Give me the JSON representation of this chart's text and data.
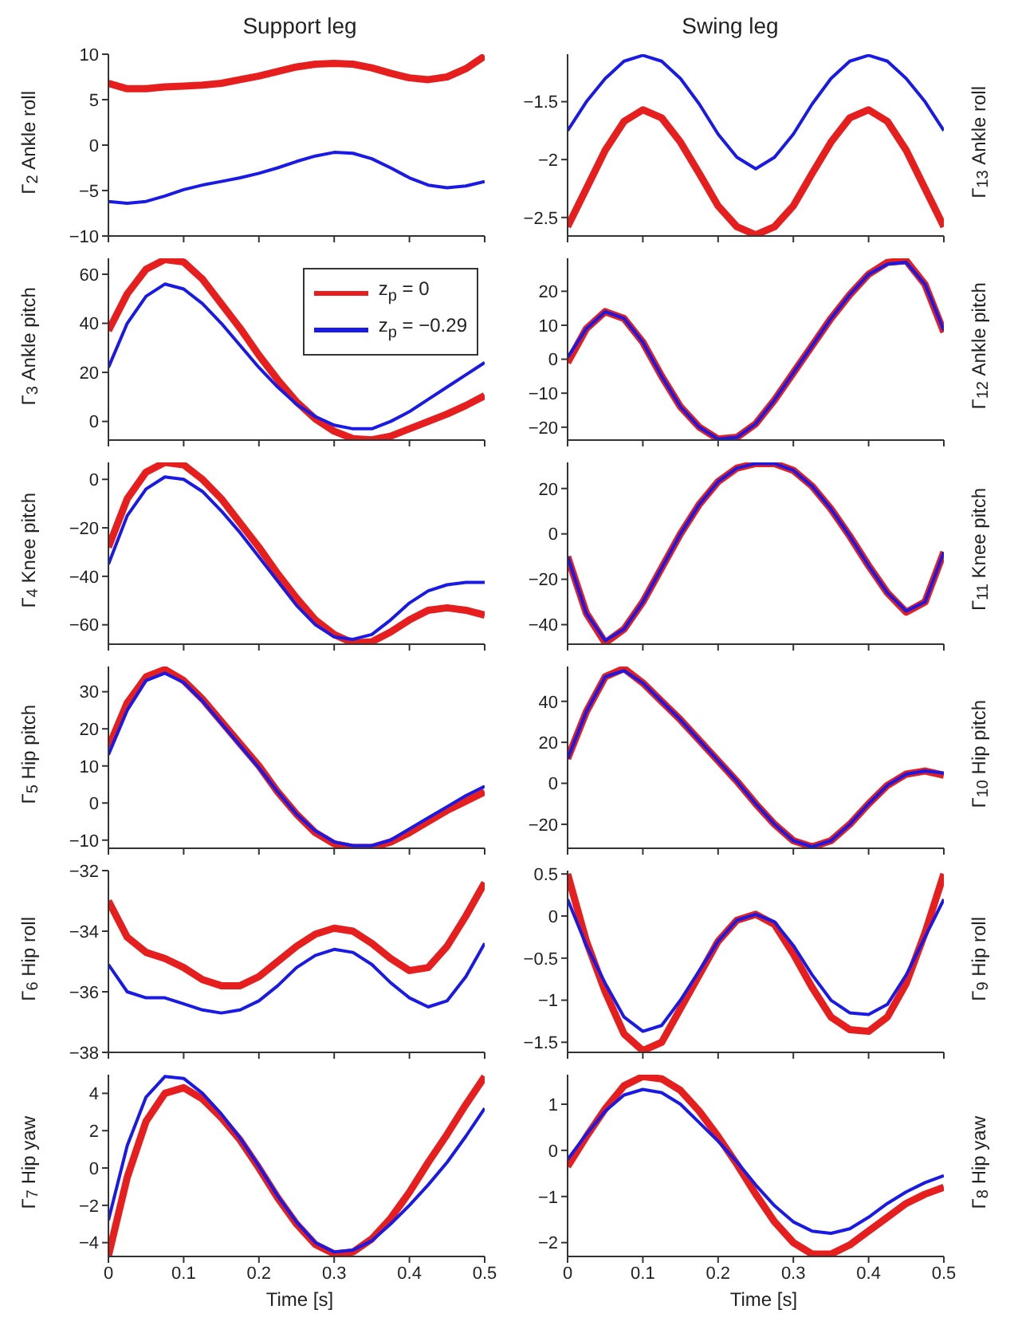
{
  "chart_data": [
    {
      "type": "line",
      "title": "Support leg",
      "ylabel": "Γ$_{2}$ Ankle roll",
      "x": [
        0,
        0.025,
        0.05,
        0.075,
        0.1,
        0.125,
        0.15,
        0.175,
        0.2,
        0.225,
        0.25,
        0.275,
        0.3,
        0.325,
        0.35,
        0.375,
        0.4,
        0.425,
        0.45,
        0.475,
        0.5
      ],
      "xlim": [
        0,
        0.5
      ],
      "xticks": [
        0,
        0.1,
        0.2,
        0.3,
        0.4,
        0.5
      ],
      "ylim": [
        -10,
        10
      ],
      "yticks": [
        -10,
        -5,
        0,
        5,
        10
      ],
      "tick_labels": "y",
      "series": [
        {
          "color": "#e61e1e",
          "values": [
            6.8,
            6.2,
            6.2,
            6.4,
            6.5,
            6.6,
            6.8,
            7.2,
            7.6,
            8.1,
            8.6,
            8.9,
            9.0,
            8.9,
            8.5,
            7.9,
            7.4,
            7.2,
            7.5,
            8.4,
            9.8
          ]
        },
        {
          "color": "#1a1ae6",
          "values": [
            -6.2,
            -6.4,
            -6.2,
            -5.6,
            -4.9,
            -4.4,
            -4.0,
            -3.6,
            -3.1,
            -2.5,
            -1.8,
            -1.2,
            -0.8,
            -0.9,
            -1.5,
            -2.5,
            -3.6,
            -4.4,
            -4.7,
            -4.5,
            -4.0
          ]
        }
      ]
    },
    {
      "type": "line",
      "title": "Swing leg",
      "ylabel": "Γ$_{13}$ Ankle roll",
      "x": [
        0,
        0.025,
        0.05,
        0.075,
        0.1,
        0.125,
        0.15,
        0.175,
        0.2,
        0.225,
        0.25,
        0.275,
        0.3,
        0.325,
        0.35,
        0.375,
        0.4,
        0.425,
        0.45,
        0.475,
        0.5
      ],
      "xlim": [
        0,
        0.5
      ],
      "xticks": [
        0,
        0.1,
        0.2,
        0.3,
        0.4,
        0.5
      ],
      "ylim": [
        -2.66,
        -1.09
      ],
      "yticks": [
        -2.5,
        -2,
        -1.5
      ],
      "tick_labels": "y",
      "series": [
        {
          "color": "#e61e1e",
          "values": [
            -2.58,
            -2.25,
            -1.92,
            -1.67,
            -1.57,
            -1.64,
            -1.85,
            -2.12,
            -2.4,
            -2.58,
            -2.65,
            -2.58,
            -2.4,
            -2.12,
            -1.85,
            -1.64,
            -1.57,
            -1.67,
            -1.92,
            -2.25,
            -2.58
          ]
        },
        {
          "color": "#1a1ae6",
          "values": [
            -1.75,
            -1.5,
            -1.3,
            -1.15,
            -1.1,
            -1.15,
            -1.3,
            -1.52,
            -1.78,
            -1.98,
            -2.08,
            -1.98,
            -1.78,
            -1.52,
            -1.3,
            -1.15,
            -1.1,
            -1.15,
            -1.3,
            -1.5,
            -1.75
          ]
        }
      ]
    },
    {
      "type": "line",
      "ylabel": "Γ$_{3}$ Ankle pitch",
      "x": [
        0,
        0.025,
        0.05,
        0.075,
        0.1,
        0.125,
        0.15,
        0.175,
        0.2,
        0.225,
        0.25,
        0.275,
        0.3,
        0.325,
        0.35,
        0.375,
        0.4,
        0.425,
        0.45,
        0.475,
        0.5
      ],
      "xlim": [
        0,
        0.5
      ],
      "xticks": [
        0,
        0.1,
        0.2,
        0.3,
        0.4,
        0.5
      ],
      "ylim": [
        -7.6,
        66.5
      ],
      "yticks": [
        0,
        20,
        40,
        60
      ],
      "tick_labels": "y",
      "legend": "top right",
      "series": [
        {
          "name": "z$_{p}$ = 0",
          "color": "#e61e1e",
          "values": [
            37,
            52,
            62,
            66,
            65,
            58,
            48,
            38,
            27,
            17,
            8,
            1,
            -4,
            -7,
            -7.5,
            -6,
            -3,
            0,
            3,
            6.5,
            10.5
          ]
        },
        {
          "name": "z$_{p}$ = −0.29",
          "color": "#1a1ae6",
          "values": [
            22,
            40,
            51,
            56,
            54,
            48,
            40,
            31,
            22,
            14,
            7,
            2,
            -1.5,
            -3,
            -3,
            0,
            4,
            9,
            14,
            19,
            24
          ]
        }
      ]
    },
    {
      "type": "line",
      "ylabel": "Γ$_{12}$ Ankle pitch",
      "x": [
        0,
        0.025,
        0.05,
        0.075,
        0.1,
        0.125,
        0.15,
        0.175,
        0.2,
        0.225,
        0.25,
        0.275,
        0.3,
        0.325,
        0.35,
        0.375,
        0.4,
        0.425,
        0.45,
        0.475,
        0.5
      ],
      "xlim": [
        0,
        0.5
      ],
      "xticks": [
        0,
        0.1,
        0.2,
        0.3,
        0.4,
        0.5
      ],
      "ylim": [
        -23.8,
        29.7
      ],
      "yticks": [
        -20,
        -10,
        0,
        10,
        20
      ],
      "tick_labels": "y",
      "series": [
        {
          "color": "#e61e1e",
          "values": [
            -1,
            9,
            14,
            12,
            5,
            -5,
            -14,
            -20,
            -23.5,
            -23,
            -19,
            -12,
            -4,
            4,
            12,
            19,
            25,
            28.5,
            29,
            22,
            8
          ]
        },
        {
          "color": "#1a1ae6",
          "values": [
            0.5,
            9,
            14,
            12,
            5,
            -5,
            -14,
            -20,
            -23.5,
            -23,
            -19,
            -12,
            -4,
            4,
            12,
            19,
            25,
            28,
            28.5,
            22,
            8.5
          ]
        }
      ]
    },
    {
      "type": "line",
      "ylabel": "Γ$_{4}$ Knee pitch",
      "x": [
        0,
        0.025,
        0.05,
        0.075,
        0.1,
        0.125,
        0.15,
        0.175,
        0.2,
        0.225,
        0.25,
        0.275,
        0.3,
        0.325,
        0.35,
        0.375,
        0.4,
        0.425,
        0.45,
        0.475,
        0.5
      ],
      "xlim": [
        0,
        0.5
      ],
      "xticks": [
        0,
        0.1,
        0.2,
        0.3,
        0.4,
        0.5
      ],
      "ylim": [
        -68,
        7
      ],
      "yticks": [
        -60,
        -40,
        -20,
        0
      ],
      "tick_labels": "y",
      "series": [
        {
          "color": "#e61e1e",
          "values": [
            -28,
            -8,
            3,
            7,
            6,
            0,
            -8,
            -18,
            -28,
            -39,
            -49,
            -58,
            -64,
            -67.5,
            -67,
            -63,
            -58,
            -54,
            -53,
            -54,
            -56
          ]
        },
        {
          "color": "#1a1ae6",
          "values": [
            -35,
            -15,
            -4,
            1,
            0,
            -5,
            -13,
            -22,
            -32,
            -42,
            -52,
            -60,
            -65,
            -66,
            -64,
            -58,
            -51,
            -46,
            -43.5,
            -42.5,
            -42.5
          ]
        }
      ]
    },
    {
      "type": "line",
      "ylabel": "Γ$_{11}$ Knee pitch",
      "x": [
        0,
        0.025,
        0.05,
        0.075,
        0.1,
        0.125,
        0.15,
        0.175,
        0.2,
        0.225,
        0.25,
        0.275,
        0.3,
        0.325,
        0.35,
        0.375,
        0.4,
        0.425,
        0.45,
        0.475,
        0.5
      ],
      "xlim": [
        0,
        0.5
      ],
      "xticks": [
        0,
        0.1,
        0.2,
        0.3,
        0.4,
        0.5
      ],
      "ylim": [
        -48.6,
        31.5
      ],
      "yticks": [
        -40,
        -20,
        0,
        20
      ],
      "tick_labels": "y",
      "series": [
        {
          "color": "#e61e1e",
          "values": [
            -10,
            -35,
            -48,
            -42,
            -30,
            -15,
            0,
            13,
            23,
            29,
            31,
            31,
            28,
            21,
            11,
            -1,
            -14,
            -26,
            -34.5,
            -30,
            -8
          ]
        },
        {
          "color": "#1a1ae6",
          "values": [
            -10,
            -35,
            -47,
            -42,
            -30,
            -15,
            0,
            13,
            23,
            29,
            31,
            31,
            28,
            21,
            11,
            -1,
            -14,
            -26,
            -34,
            -30,
            -8
          ]
        }
      ]
    },
    {
      "type": "line",
      "ylabel": "Γ$_{5}$ Hip pitch",
      "x": [
        0,
        0.025,
        0.05,
        0.075,
        0.1,
        0.125,
        0.15,
        0.175,
        0.2,
        0.225,
        0.25,
        0.275,
        0.3,
        0.325,
        0.35,
        0.375,
        0.4,
        0.425,
        0.45,
        0.475,
        0.5
      ],
      "xlim": [
        0,
        0.5
      ],
      "xticks": [
        0,
        0.1,
        0.2,
        0.3,
        0.4,
        0.5
      ],
      "ylim": [
        -12.2,
        36.8
      ],
      "yticks": [
        -10,
        0,
        10,
        20,
        30
      ],
      "tick_labels": "y",
      "series": [
        {
          "color": "#e61e1e",
          "values": [
            15,
            27,
            34,
            36,
            33,
            28,
            22,
            16,
            10,
            3,
            -3,
            -8,
            -11,
            -12,
            -12,
            -10.5,
            -8,
            -5,
            -2,
            0.5,
            3
          ]
        },
        {
          "color": "#1a1ae6",
          "values": [
            13,
            25,
            33,
            35,
            32.5,
            27.5,
            21.5,
            15.5,
            9.5,
            3,
            -3,
            -7.5,
            -10.5,
            -11.5,
            -11.5,
            -10,
            -7,
            -4,
            -1,
            2,
            4.5
          ]
        }
      ]
    },
    {
      "type": "line",
      "ylabel": "Γ$_{10}$ Hip pitch",
      "x": [
        0,
        0.025,
        0.05,
        0.075,
        0.1,
        0.125,
        0.15,
        0.175,
        0.2,
        0.225,
        0.25,
        0.275,
        0.3,
        0.325,
        0.35,
        0.375,
        0.4,
        0.425,
        0.45,
        0.475,
        0.5
      ],
      "xlim": [
        0,
        0.5
      ],
      "xticks": [
        0,
        0.1,
        0.2,
        0.3,
        0.4,
        0.5
      ],
      "ylim": [
        -31.7,
        57
      ],
      "yticks": [
        -20,
        0,
        20,
        40
      ],
      "tick_labels": "y",
      "series": [
        {
          "color": "#e61e1e",
          "values": [
            12,
            35,
            52,
            56,
            49,
            40,
            31,
            21,
            11,
            1,
            -10,
            -20,
            -28,
            -31,
            -28,
            -20,
            -10,
            -1,
            4.5,
            6,
            4
          ]
        },
        {
          "color": "#1a1ae6",
          "values": [
            12,
            35,
            52,
            55,
            49,
            40,
            31,
            21,
            11,
            1,
            -10,
            -20,
            -28,
            -31,
            -28,
            -20,
            -10,
            -1,
            4.5,
            6,
            5
          ]
        }
      ]
    },
    {
      "type": "line",
      "ylabel": "Γ$_{6}$ Hip roll",
      "x": [
        0,
        0.025,
        0.05,
        0.075,
        0.1,
        0.125,
        0.15,
        0.175,
        0.2,
        0.225,
        0.25,
        0.275,
        0.3,
        0.325,
        0.35,
        0.375,
        0.4,
        0.425,
        0.45,
        0.475,
        0.5
      ],
      "xlim": [
        0,
        0.5
      ],
      "xticks": [
        0,
        0.1,
        0.2,
        0.3,
        0.4,
        0.5
      ],
      "ylim": [
        -38,
        -32
      ],
      "yticks": [
        -38,
        -36,
        -34,
        -32
      ],
      "tick_labels": "y",
      "series": [
        {
          "color": "#e61e1e",
          "values": [
            -33.0,
            -34.2,
            -34.7,
            -34.9,
            -35.2,
            -35.6,
            -35.8,
            -35.8,
            -35.5,
            -35.0,
            -34.5,
            -34.1,
            -33.9,
            -34.0,
            -34.4,
            -34.9,
            -35.3,
            -35.2,
            -34.5,
            -33.5,
            -32.4
          ]
        },
        {
          "color": "#1a1ae6",
          "values": [
            -35.1,
            -36.0,
            -36.2,
            -36.2,
            -36.4,
            -36.6,
            -36.7,
            -36.6,
            -36.3,
            -35.8,
            -35.2,
            -34.8,
            -34.6,
            -34.7,
            -35.1,
            -35.7,
            -36.2,
            -36.5,
            -36.3,
            -35.5,
            -34.4
          ]
        }
      ]
    },
    {
      "type": "line",
      "ylabel": "Γ$_{9}$ Hip roll",
      "x": [
        0,
        0.025,
        0.05,
        0.075,
        0.1,
        0.125,
        0.15,
        0.175,
        0.2,
        0.225,
        0.25,
        0.275,
        0.3,
        0.325,
        0.35,
        0.375,
        0.4,
        0.425,
        0.45,
        0.475,
        0.5
      ],
      "xlim": [
        0,
        0.5
      ],
      "xticks": [
        0,
        0.1,
        0.2,
        0.3,
        0.4,
        0.5
      ],
      "ylim": [
        -1.62,
        0.54
      ],
      "yticks": [
        -1.5,
        -1,
        -0.5,
        0,
        0.5
      ],
      "tick_labels": "y",
      "series": [
        {
          "color": "#e61e1e",
          "values": [
            0.5,
            -0.3,
            -0.9,
            -1.4,
            -1.6,
            -1.5,
            -1.1,
            -0.7,
            -0.3,
            -0.05,
            0.02,
            -0.1,
            -0.45,
            -0.85,
            -1.2,
            -1.35,
            -1.37,
            -1.2,
            -0.8,
            -0.2,
            0.5
          ]
        },
        {
          "color": "#1a1ae6",
          "values": [
            0.2,
            -0.35,
            -0.8,
            -1.2,
            -1.37,
            -1.3,
            -1.0,
            -0.65,
            -0.3,
            -0.05,
            0.02,
            -0.07,
            -0.35,
            -0.7,
            -1.0,
            -1.15,
            -1.17,
            -1.05,
            -0.7,
            -0.25,
            0.2
          ]
        }
      ]
    },
    {
      "type": "line",
      "ylabel": "Γ$_{7}$ Hip yaw",
      "xlabel": "Time [s]",
      "x": [
        0,
        0.025,
        0.05,
        0.075,
        0.1,
        0.125,
        0.15,
        0.175,
        0.2,
        0.225,
        0.25,
        0.275,
        0.3,
        0.325,
        0.35,
        0.375,
        0.4,
        0.425,
        0.45,
        0.475,
        0.5
      ],
      "xlim": [
        0,
        0.5
      ],
      "xticks": [
        0,
        0.1,
        0.2,
        0.3,
        0.4,
        0.5
      ],
      "ylim": [
        -4.74,
        5.0
      ],
      "yticks": [
        -4,
        -2,
        0,
        2,
        4
      ],
      "series": [
        {
          "color": "#e61e1e",
          "values": [
            -4.7,
            -0.5,
            2.5,
            4.0,
            4.3,
            3.7,
            2.7,
            1.5,
            0,
            -1.6,
            -3.0,
            -4.1,
            -4.6,
            -4.5,
            -3.8,
            -2.7,
            -1.3,
            0.3,
            1.8,
            3.4,
            4.9
          ]
        },
        {
          "color": "#1a1ae6",
          "values": [
            -2.8,
            1.2,
            3.8,
            4.9,
            4.8,
            4.0,
            2.9,
            1.6,
            0.1,
            -1.5,
            -2.9,
            -4.0,
            -4.5,
            -4.4,
            -3.9,
            -3.0,
            -2.0,
            -0.9,
            0.3,
            1.7,
            3.2
          ]
        }
      ]
    },
    {
      "type": "line",
      "ylabel": "Γ$_{8}$ Hip yaw",
      "xlabel": "Time [s]",
      "x": [
        0,
        0.025,
        0.05,
        0.075,
        0.1,
        0.125,
        0.15,
        0.175,
        0.2,
        0.225,
        0.25,
        0.275,
        0.3,
        0.325,
        0.35,
        0.375,
        0.4,
        0.425,
        0.45,
        0.475,
        0.5
      ],
      "xlim": [
        0,
        0.5
      ],
      "xticks": [
        0,
        0.1,
        0.2,
        0.3,
        0.4,
        0.5
      ],
      "ylim": [
        -2.3,
        1.64
      ],
      "yticks": [
        -2,
        -1,
        0,
        1
      ],
      "series": [
        {
          "color": "#e61e1e",
          "values": [
            -0.35,
            0.3,
            0.9,
            1.4,
            1.6,
            1.55,
            1.3,
            0.85,
            0.3,
            -0.3,
            -0.95,
            -1.55,
            -2.0,
            -2.25,
            -2.25,
            -2.05,
            -1.75,
            -1.45,
            -1.15,
            -0.95,
            -0.8
          ]
        },
        {
          "color": "#1a1ae6",
          "values": [
            -0.2,
            0.35,
            0.85,
            1.2,
            1.32,
            1.25,
            1.0,
            0.6,
            0.2,
            -0.25,
            -0.75,
            -1.2,
            -1.55,
            -1.75,
            -1.8,
            -1.7,
            -1.45,
            -1.15,
            -0.9,
            -0.7,
            -0.55
          ]
        }
      ]
    }
  ]
}
